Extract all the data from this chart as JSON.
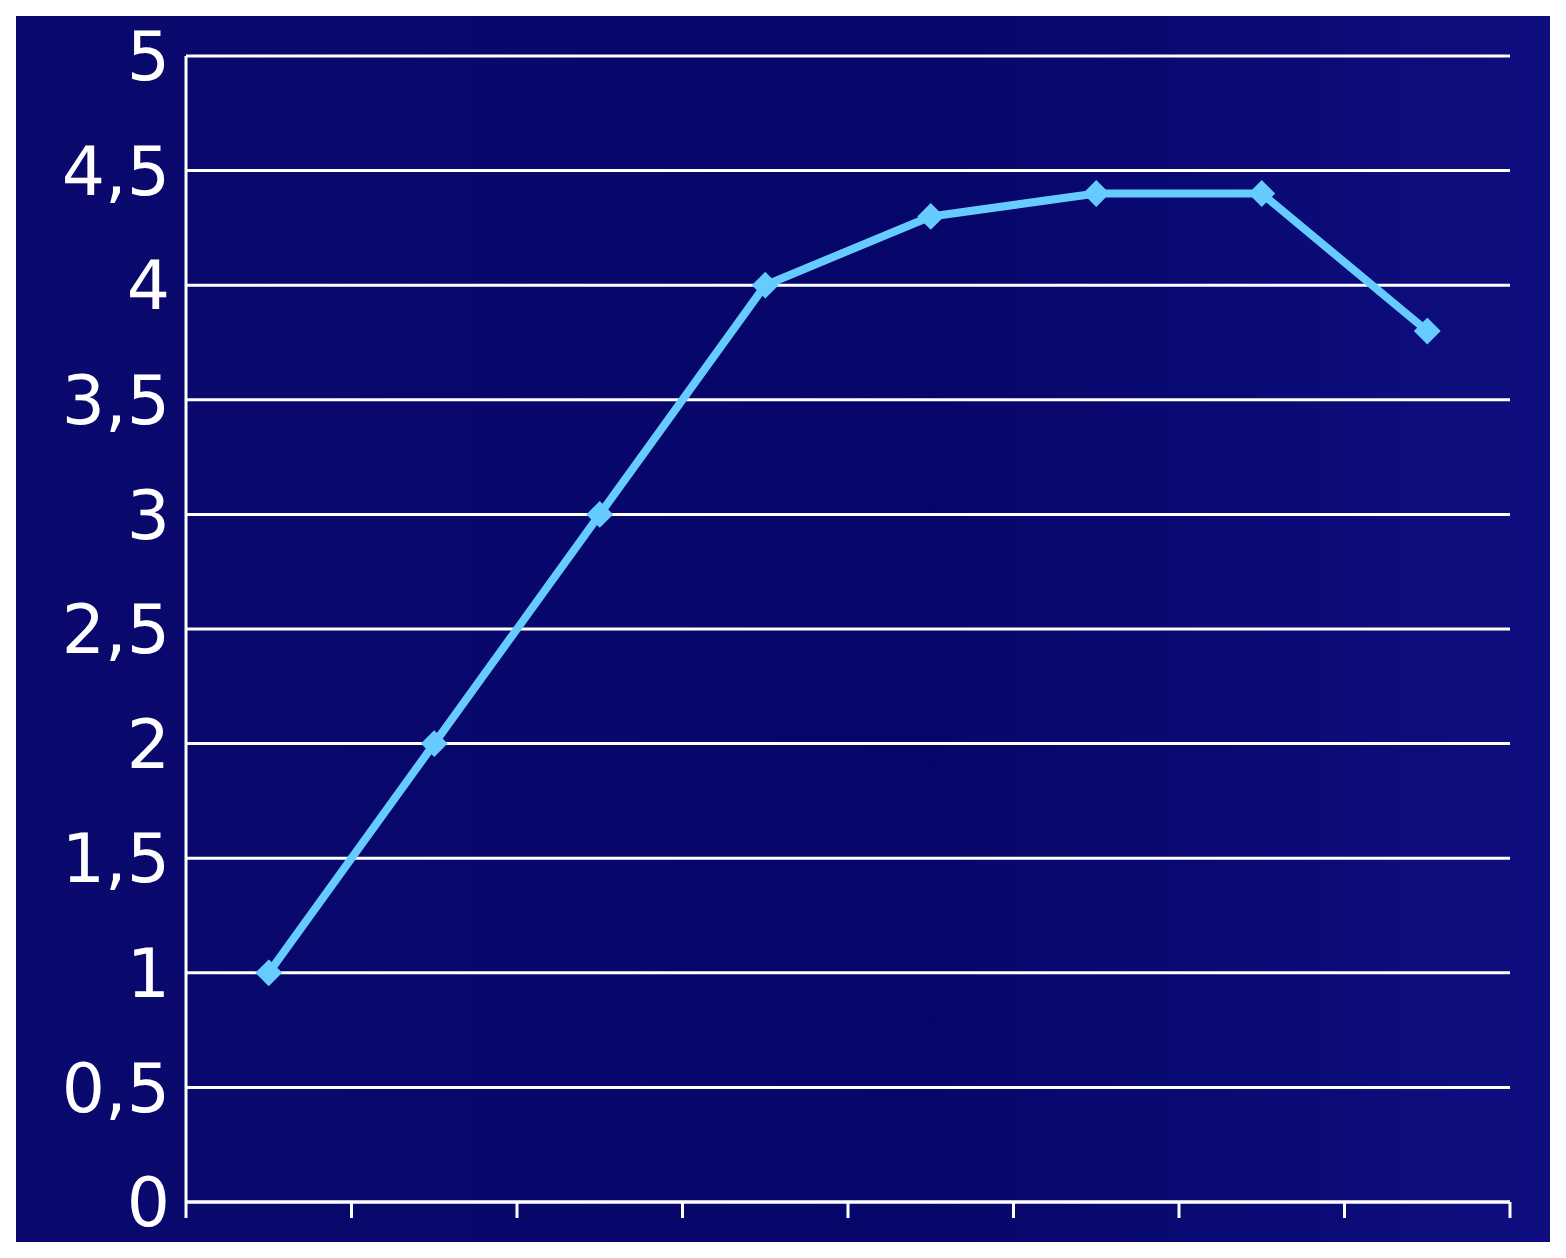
{
  "chart_data": {
    "type": "line",
    "categories": [
      null,
      null,
      null,
      null,
      null,
      null,
      null,
      null
    ],
    "series": [
      {
        "color": "#66ccff",
        "values": [
          1,
          2,
          3,
          4,
          4.3,
          4.4,
          4.4,
          3.8
        ]
      }
    ],
    "ylim": [
      0,
      5
    ],
    "yticks": [
      0,
      {
        "value": 0.5,
        "label": "0,5"
      },
      1,
      {
        "value": 1.5,
        "label": "1,5"
      },
      2,
      {
        "value": 2.5,
        "label": "2,5"
      },
      3,
      {
        "value": 3.5,
        "label": "3,5"
      },
      4,
      {
        "value": 4.5,
        "label": "4,5"
      },
      5
    ],
    "grid": "y",
    "marker": "diamond",
    "line_style": "solid"
  }
}
